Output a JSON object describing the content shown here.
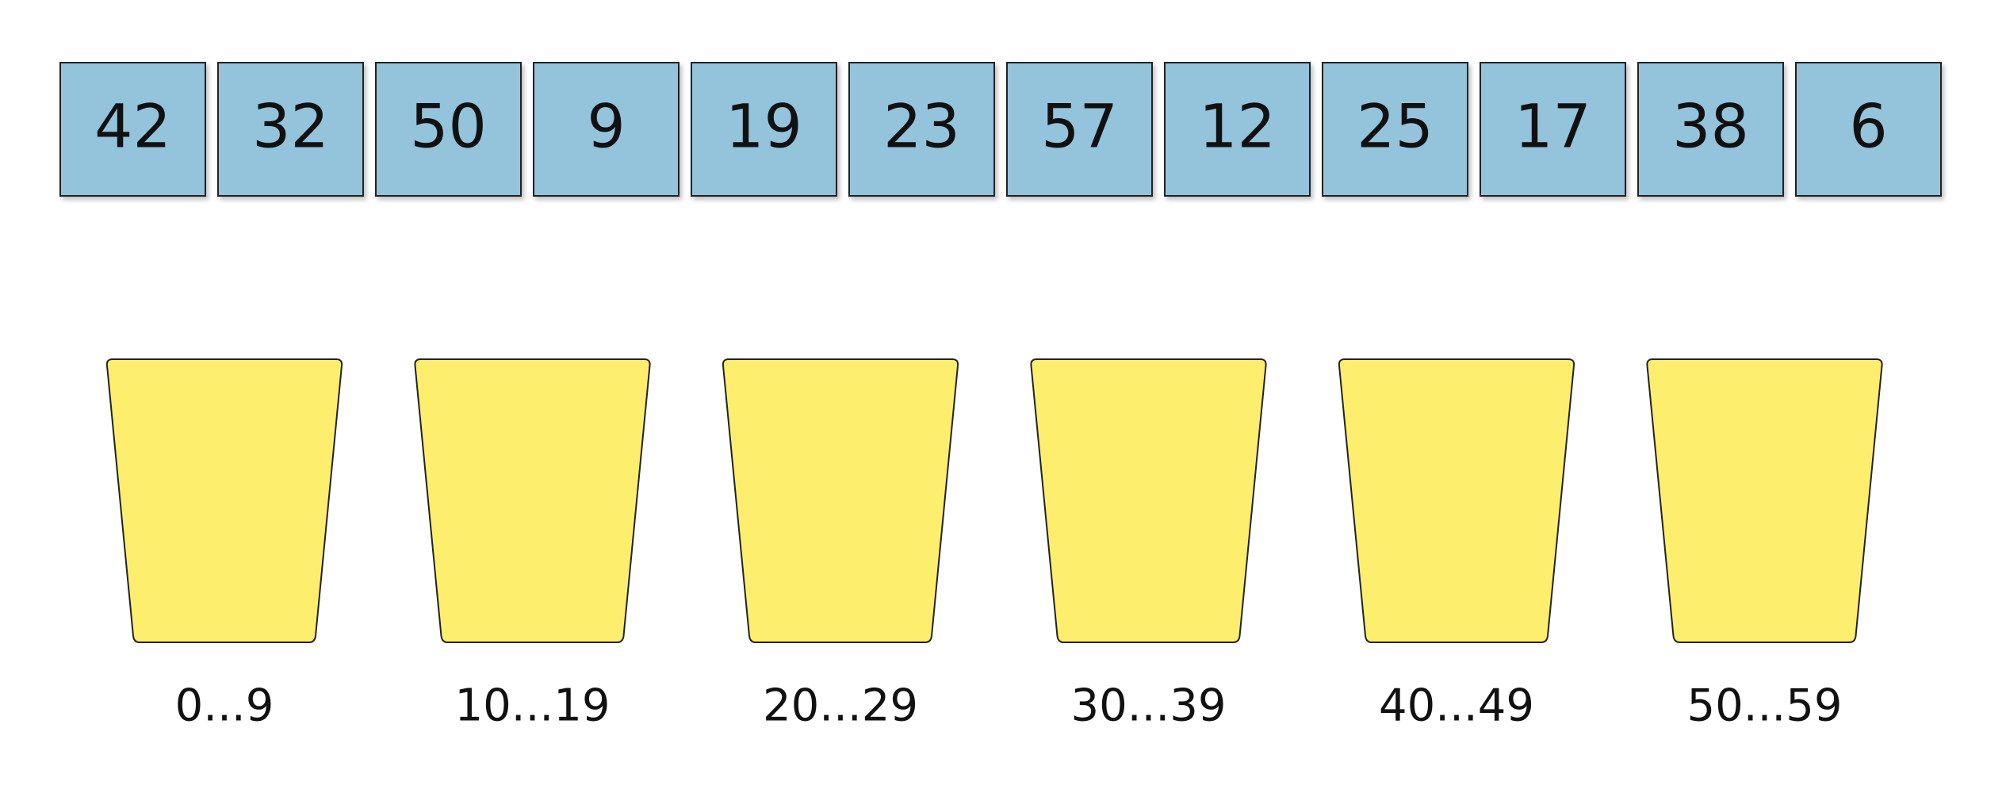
{
  "array": [
    42,
    32,
    50,
    9,
    19,
    23,
    57,
    12,
    25,
    17,
    38,
    6
  ],
  "buckets": [
    "0...9",
    "10...19",
    "20...29",
    "30...39",
    "40...49",
    "50...59"
  ]
}
